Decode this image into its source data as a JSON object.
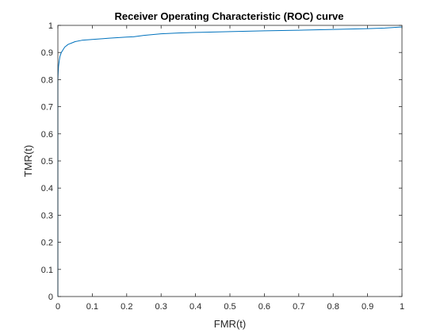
{
  "chart_data": {
    "type": "line",
    "title": "Receiver Operating Characteristic (ROC) curve",
    "xlabel": "FMR(t)",
    "ylabel": "TMR(t)",
    "xlim": [
      0,
      1
    ],
    "ylim": [
      0,
      1
    ],
    "xticks": [
      "0",
      "0.1",
      "0.2",
      "0.3",
      "0.4",
      "0.5",
      "0.6",
      "0.7",
      "0.8",
      "0.9",
      "1"
    ],
    "yticks": [
      "0",
      "0.1",
      "0.2",
      "0.3",
      "0.4",
      "0.5",
      "0.6",
      "0.7",
      "0.8",
      "0.9",
      "1"
    ],
    "grid": false,
    "series": [
      {
        "color": "#0072bd",
        "x": [
          0,
          0,
          0.001,
          0.002,
          0.004,
          0.006,
          0.01,
          0.015,
          0.02,
          0.03,
          0.04,
          0.05,
          0.07,
          0.1,
          0.12,
          0.15,
          0.2,
          0.22,
          0.25,
          0.3,
          0.35,
          0.4,
          0.5,
          0.6,
          0.7,
          0.8,
          0.9,
          0.95,
          1.0
        ],
        "y": [
          0,
          0.8,
          0.83,
          0.85,
          0.87,
          0.885,
          0.9,
          0.91,
          0.92,
          0.93,
          0.935,
          0.94,
          0.945,
          0.948,
          0.95,
          0.953,
          0.957,
          0.958,
          0.963,
          0.969,
          0.972,
          0.974,
          0.977,
          0.98,
          0.982,
          0.985,
          0.988,
          0.99,
          0.994
        ]
      }
    ]
  }
}
